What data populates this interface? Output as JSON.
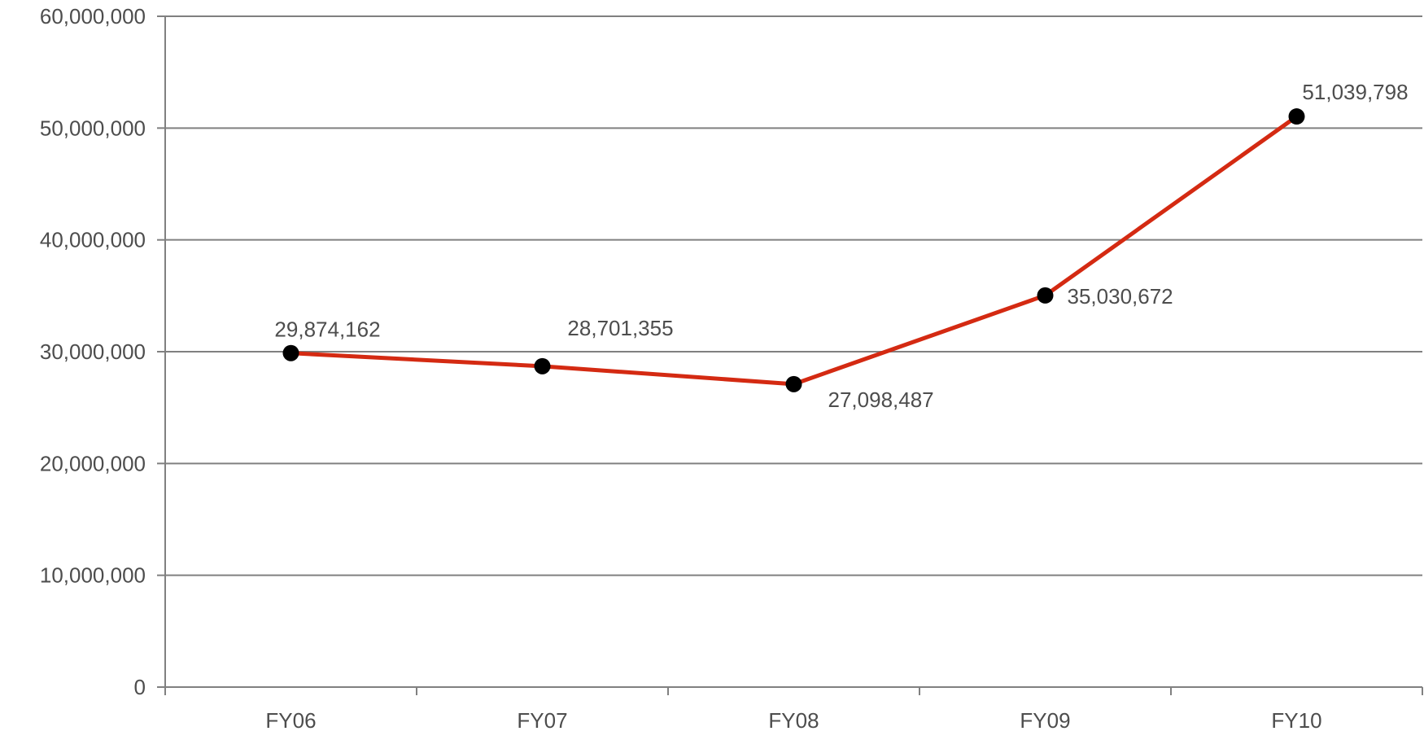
{
  "chart_data": {
    "type": "line",
    "title": "",
    "xlabel": "",
    "ylabel": "",
    "categories": [
      "FY06",
      "FY07",
      "FY08",
      "FY09",
      "FY10"
    ],
    "series": [
      {
        "values": [
          29874162,
          28701355,
          27098487,
          35030672,
          51039798
        ],
        "color": "#d42a12",
        "marker_color": "#000000"
      }
    ],
    "data_labels": [
      "29,874,162",
      "28,701,355",
      "27,098,487",
      "35,030,672",
      "51,039,798"
    ],
    "y_ticks": [
      0,
      10000000,
      20000000,
      30000000,
      40000000,
      50000000,
      60000000
    ],
    "y_tick_labels": [
      "0",
      "10,000,000",
      "20,000,000",
      "30,000,000",
      "40,000,000",
      "50,000,000",
      "60,000,000"
    ],
    "ylim": [
      0,
      60000000
    ],
    "grid": true,
    "legend": "none",
    "colors": {
      "gridline": "#808080",
      "axis": "#808080",
      "text": "#4d4d4d"
    }
  }
}
